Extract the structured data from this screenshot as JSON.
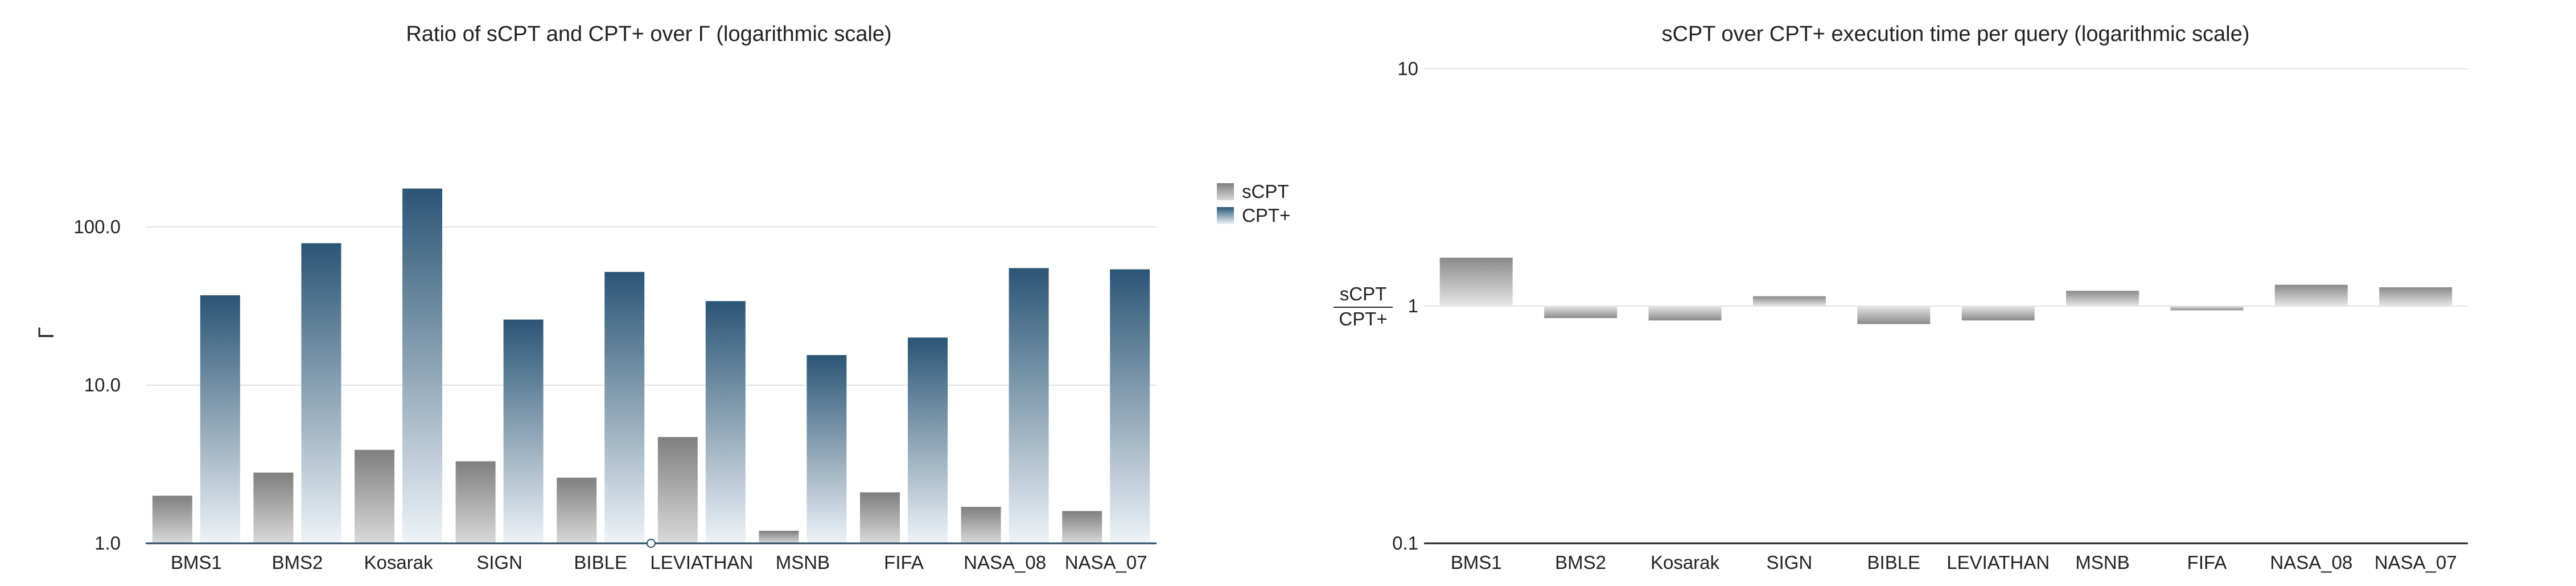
{
  "chart_data": [
    {
      "type": "bar",
      "title": "Ratio of sCPT and CPT+ over Γ (logarithmic scale)",
      "ylabel": "Γ",
      "xlabel": "",
      "yscale": "log",
      "ylim": [
        1,
        400
      ],
      "yticks": [
        "1.0",
        "10.0",
        "100.0"
      ],
      "grid": true,
      "legend_position": "right",
      "categories": [
        "BMS1",
        "BMS2",
        "Kosarak",
        "SIGN",
        "BIBLE",
        "LEVIATHAN",
        "MSNB",
        "FIFA",
        "NASA_08",
        "NASA_07"
      ],
      "series": [
        {
          "name": "sCPT",
          "color": "#8a8a8a",
          "values": [
            2.0,
            2.8,
            3.9,
            3.3,
            2.6,
            4.7,
            1.2,
            2.1,
            1.7,
            1.6
          ]
        },
        {
          "name": "CPT+",
          "color": "#2e5878",
          "values": [
            37,
            79,
            175,
            26,
            52,
            34,
            15.5,
            20,
            55,
            54
          ]
        }
      ]
    },
    {
      "type": "bar",
      "title": "sCPT over CPT+ execution time per query (logarithmic scale)",
      "ylabel": "sCPT / CPT+",
      "ylabel_numerator": "sCPT",
      "ylabel_denominator": "CPT+",
      "xlabel": "",
      "yscale": "log",
      "ylim": [
        0.1,
        10
      ],
      "baseline": 1,
      "yticks": [
        "0.1",
        "1",
        "10"
      ],
      "grid": true,
      "categories": [
        "BMS1",
        "BMS2",
        "Kosarak",
        "SIGN",
        "BIBLE",
        "LEVIATHAN",
        "MSNB",
        "FIFA",
        "NASA_08",
        "NASA_07"
      ],
      "series": [
        {
          "color": "#8a8a8a",
          "values": [
            1.6,
            0.89,
            0.87,
            1.1,
            0.84,
            0.87,
            1.16,
            0.96,
            1.23,
            1.2
          ]
        }
      ]
    }
  ]
}
